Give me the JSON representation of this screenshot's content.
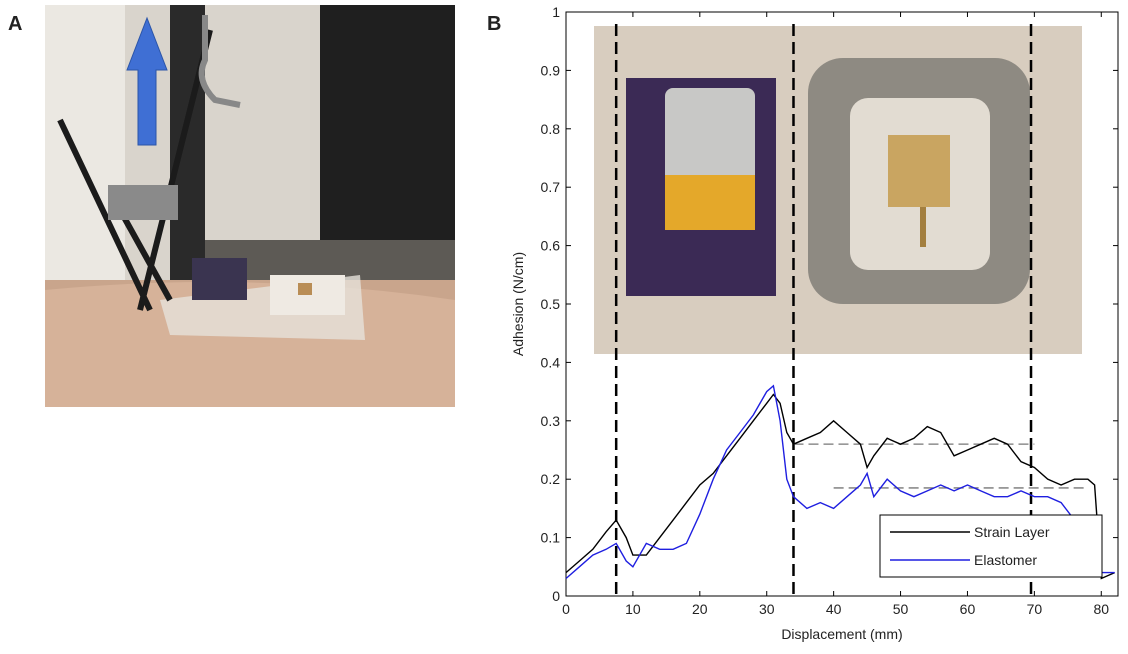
{
  "panel_labels": {
    "a": "A",
    "b": "B"
  },
  "chart_data": {
    "type": "line",
    "x_label": "Displacement (mm)",
    "y_label": "Adhesion (N/cm)",
    "x": [
      0,
      2,
      4,
      6,
      7.5,
      9,
      10,
      12,
      14,
      16,
      18,
      20,
      22,
      24,
      26,
      28,
      30,
      31,
      32,
      33,
      34,
      36,
      38,
      40,
      42,
      44,
      45,
      46,
      48,
      50,
      52,
      54,
      56,
      58,
      60,
      62,
      64,
      66,
      68,
      70,
      72,
      74,
      76,
      78,
      79,
      80,
      82
    ],
    "series": [
      {
        "name": "Strain Layer",
        "color": "#000000",
        "values": [
          0.04,
          0.06,
          0.08,
          0.11,
          0.13,
          0.1,
          0.07,
          0.07,
          0.1,
          0.13,
          0.16,
          0.19,
          0.21,
          0.24,
          0.27,
          0.3,
          0.33,
          0.345,
          0.33,
          0.28,
          0.26,
          0.27,
          0.28,
          0.3,
          0.28,
          0.26,
          0.22,
          0.24,
          0.27,
          0.26,
          0.27,
          0.29,
          0.28,
          0.24,
          0.25,
          0.26,
          0.27,
          0.26,
          0.23,
          0.22,
          0.2,
          0.19,
          0.2,
          0.2,
          0.19,
          0.03,
          0.04
        ]
      },
      {
        "name": "Elastomer",
        "color": "#1f1fe0",
        "values": [
          0.03,
          0.05,
          0.07,
          0.08,
          0.09,
          0.06,
          0.05,
          0.09,
          0.08,
          0.08,
          0.09,
          0.14,
          0.2,
          0.25,
          0.28,
          0.31,
          0.35,
          0.36,
          0.3,
          0.2,
          0.17,
          0.15,
          0.16,
          0.15,
          0.17,
          0.19,
          0.21,
          0.17,
          0.2,
          0.18,
          0.17,
          0.18,
          0.19,
          0.18,
          0.19,
          0.18,
          0.17,
          0.17,
          0.18,
          0.17,
          0.17,
          0.16,
          0.13,
          0.04,
          0.04,
          0.04,
          0.04
        ]
      }
    ],
    "xlim": [
      0,
      82.5
    ],
    "ylim": [
      0,
      1
    ],
    "xticks": [
      0,
      10,
      20,
      30,
      40,
      50,
      60,
      70,
      80
    ],
    "yticks": [
      0,
      0.1,
      0.2,
      0.3,
      0.4,
      0.5,
      0.6,
      0.7,
      0.8,
      0.9,
      1
    ],
    "vlines": [
      7.5,
      34,
      69.5
    ],
    "hlines": [
      {
        "y": 0.26,
        "x": [
          34,
          70
        ]
      },
      {
        "y": 0.185,
        "x": [
          40,
          78
        ]
      }
    ],
    "legend": "lower right"
  }
}
